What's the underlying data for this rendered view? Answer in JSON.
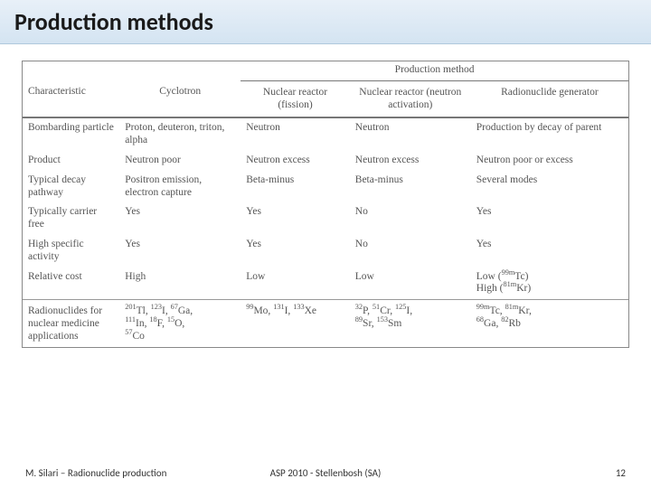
{
  "title": "Production methods",
  "header": {
    "super": "Production method",
    "characteristic": "Characteristic",
    "cyclotron": "Cyclotron",
    "fission": "Nuclear reactor (fission)",
    "activation": "Nuclear reactor (neutron activation)",
    "generator": "Radionuclide generator"
  },
  "rows": {
    "r0": {
      "c": "Bombarding particle",
      "cy": "Proton, deuteron, triton, alpha",
      "fi": "Neutron",
      "ac": "Neutron",
      "ge": "Production by decay of parent"
    },
    "r1": {
      "c": "Product",
      "cy": "Neutron poor",
      "fi": "Neutron excess",
      "ac": "Neutron excess",
      "ge": "Neutron poor or excess"
    },
    "r2": {
      "c": "Typical decay pathway",
      "cy": "Positron emission, electron capture",
      "fi": "Beta-minus",
      "ac": "Beta-minus",
      "ge": "Several modes"
    },
    "r3": {
      "c": "Typically carrier free",
      "cy": "Yes",
      "fi": "Yes",
      "ac": "No",
      "ge": "Yes"
    },
    "r4": {
      "c": "High specific activity",
      "cy": "Yes",
      "fi": "Yes",
      "ac": "No",
      "ge": "Yes"
    },
    "r5": {
      "c": "Relative cost",
      "cy": "High",
      "fi": "Low",
      "ac": "Low"
    },
    "r6": {
      "c": "Radionuclides for nuclear medicine applications"
    }
  },
  "cost_gen_a": "Low (",
  "cost_gen_b": "Tc)",
  "cost_gen_c": "High (",
  "cost_gen_d": "Kr)",
  "nuc": {
    "cy1a": "Tl, ",
    "cy1b": "I, ",
    "cy1c": "Ga,",
    "cy2a": "In, ",
    "cy2b": "F, ",
    "cy2c": "O,",
    "cy3": "Co",
    "fi1a": "Mo, ",
    "fi1b": "I, ",
    "fi1c": "Xe",
    "ac1a": "P, ",
    "ac1b": "Cr, ",
    "ac1c": "I,",
    "ac2a": "Sr, ",
    "ac2b": "Sm",
    "ge1a": "Tc, ",
    "ge1b": "Kr,",
    "ge2a": "Ga, ",
    "ge2b": "Rb"
  },
  "iso": {
    "tc99m": "99m",
    "kr81m": "81m",
    "tl201": "201",
    "i123": "123",
    "ga67": "67",
    "in111": "111",
    "f18": "18",
    "o15": "15",
    "co57": "57",
    "mo99": "99",
    "i131": "131",
    "xe133": "133",
    "p32": "32",
    "cr51": "51",
    "i125": "125",
    "sr89": "89",
    "sm153": "153",
    "ga68": "68",
    "rb82": "82"
  },
  "footer": {
    "left": "M. Silari – Radionuclide production",
    "center": "ASP 2010 - Stellenbosh (SA)",
    "page": "12"
  }
}
